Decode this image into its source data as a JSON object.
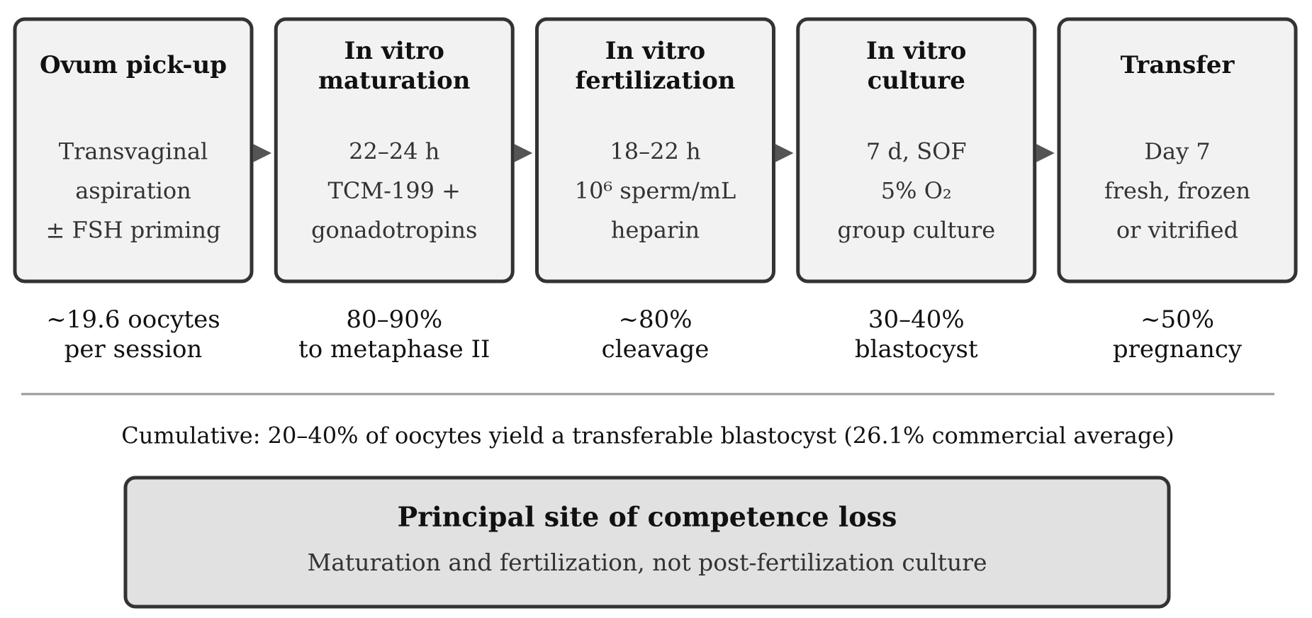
{
  "steps": [
    {
      "title": [
        "Ovum pick-up"
      ],
      "details": [
        "Transvaginal",
        "aspiration",
        "± FSH priming"
      ],
      "outcome": [
        "~19.6 oocytes",
        "per session"
      ]
    },
    {
      "title": [
        "In vitro",
        "maturation"
      ],
      "details": [
        "22–24 h",
        "TCM-199 +",
        "gonadotropins"
      ],
      "outcome": [
        "80–90%",
        "to metaphase II"
      ]
    },
    {
      "title": [
        "In vitro",
        "fertilization"
      ],
      "details": [
        "18–22 h",
        "10⁶ sperm/mL",
        "heparin"
      ],
      "outcome": [
        "~80%",
        "cleavage"
      ]
    },
    {
      "title": [
        "In vitro",
        "culture"
      ],
      "details": [
        "7 d, SOF",
        "5% O₂",
        "group culture"
      ],
      "outcome": [
        "30–40%",
        "blastocyst"
      ]
    },
    {
      "title": [
        "Transfer"
      ],
      "details": [
        "Day 7",
        "fresh, frozen",
        "or vitrified"
      ],
      "outcome": [
        "~50%",
        "pregnancy"
      ]
    }
  ],
  "cumulative": "Cumulative: 20–40% of oocytes yield a transferable blastocyst (26.1% commercial average)",
  "summary": {
    "title": "Principal site of competence loss",
    "subtitle": "Maturation and fertilization, not post-fertilization culture"
  }
}
